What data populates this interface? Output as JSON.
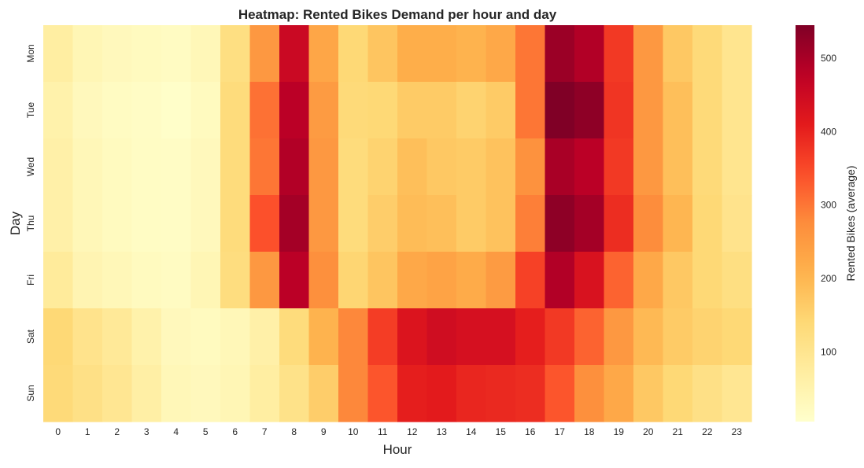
{
  "chart_data": {
    "type": "heatmap",
    "title": "Heatmap: Rented Bikes Demand per hour and day",
    "xlabel": "Hour",
    "ylabel": "Day",
    "x": [
      "0",
      "1",
      "2",
      "3",
      "4",
      "5",
      "6",
      "7",
      "8",
      "9",
      "10",
      "11",
      "12",
      "13",
      "14",
      "15",
      "16",
      "17",
      "18",
      "19",
      "20",
      "21",
      "22",
      "23"
    ],
    "y": [
      "Mon",
      "Tue",
      "Wed",
      "Thu",
      "Fri",
      "Sat",
      "Sun"
    ],
    "values": [
      [
        70,
        40,
        30,
        25,
        20,
        35,
        120,
        255,
        455,
        230,
        140,
        175,
        215,
        215,
        205,
        225,
        300,
        515,
        490,
        370,
        255,
        170,
        135,
        100
      ],
      [
        55,
        30,
        20,
        15,
        10,
        25,
        130,
        305,
        480,
        250,
        135,
        140,
        165,
        165,
        150,
        165,
        300,
        545,
        530,
        375,
        255,
        185,
        135,
        100
      ],
      [
        60,
        35,
        25,
        18,
        15,
        30,
        130,
        300,
        490,
        255,
        130,
        150,
        185,
        170,
        165,
        180,
        265,
        500,
        480,
        370,
        255,
        185,
        135,
        100
      ],
      [
        60,
        35,
        25,
        18,
        15,
        30,
        130,
        340,
        505,
        255,
        130,
        160,
        190,
        185,
        165,
        180,
        290,
        530,
        505,
        385,
        275,
        200,
        140,
        105
      ],
      [
        80,
        45,
        35,
        25,
        20,
        40,
        125,
        255,
        480,
        270,
        145,
        175,
        225,
        235,
        220,
        250,
        360,
        490,
        430,
        320,
        225,
        170,
        140,
        120
      ],
      [
        140,
        105,
        85,
        55,
        30,
        25,
        35,
        60,
        130,
        205,
        280,
        365,
        425,
        445,
        435,
        435,
        405,
        370,
        320,
        255,
        195,
        165,
        150,
        140
      ],
      [
        135,
        115,
        95,
        65,
        35,
        30,
        40,
        70,
        110,
        160,
        280,
        335,
        405,
        410,
        395,
        390,
        385,
        335,
        270,
        225,
        170,
        140,
        115,
        95
      ]
    ],
    "zlim": [
      5,
      545
    ],
    "colormap": "YlOrRd",
    "colorbar": {
      "label": "Rented Bikes (average)",
      "ticks": [
        100,
        200,
        300,
        400,
        500
      ],
      "tick_labels": [
        "100",
        "200",
        "300",
        "400",
        "500"
      ]
    },
    "grid": false
  }
}
